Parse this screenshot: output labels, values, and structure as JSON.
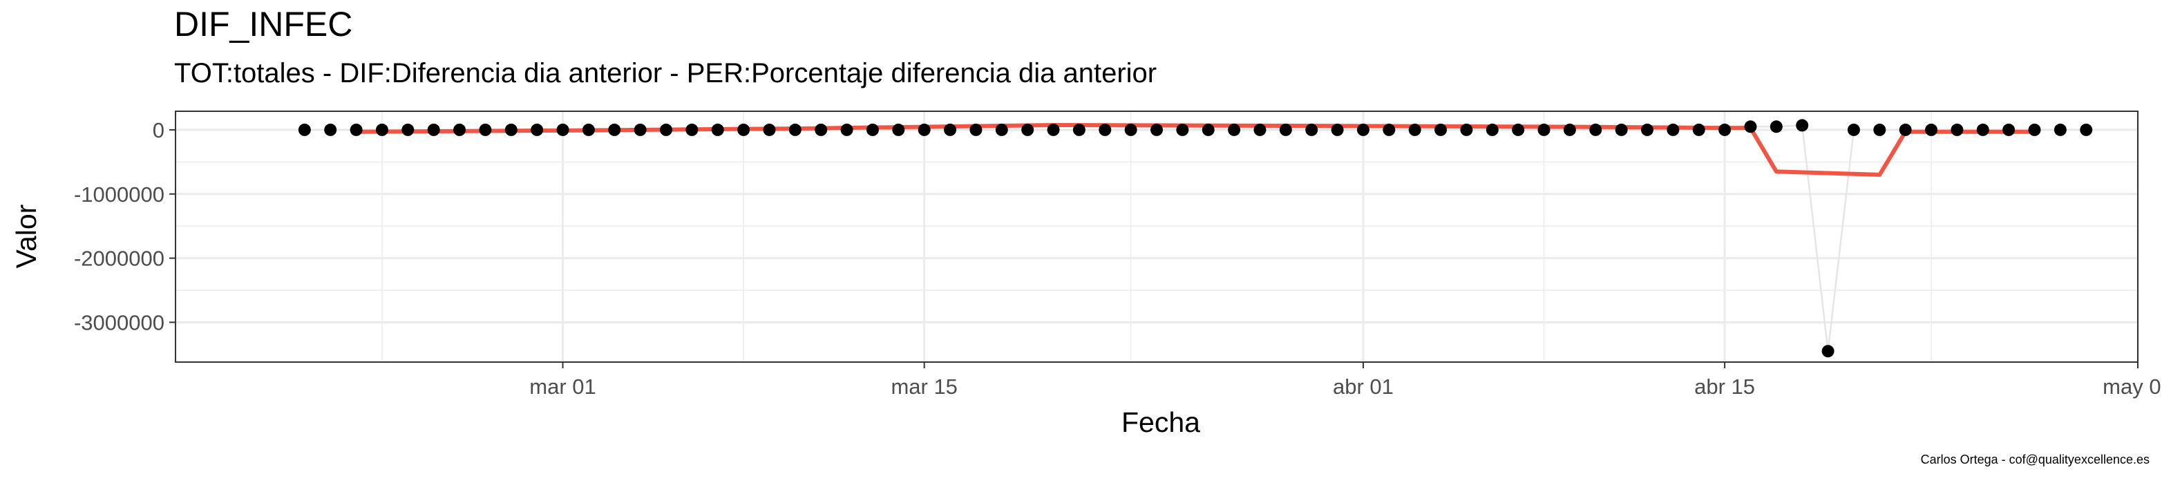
{
  "chart_data": {
    "type": "scatter",
    "title": "DIF_INFEC",
    "subtitle": "TOT:totales - DIF:Diferencia dia anterior - PER:Porcentaje diferencia dia anterior",
    "xlabel": "Fecha",
    "ylabel": "Valor",
    "caption": "Carlos Ortega - cof@qualityexcellence.es",
    "x_ticks": [
      "mar 01",
      "mar 15",
      "abr 01",
      "abr 15",
      "may 01"
    ],
    "x_tick_dates": [
      "2020-03-01",
      "2020-03-15",
      "2020-04-01",
      "2020-04-15",
      "2020-05-01"
    ],
    "y_ticks": [
      0,
      -1000000,
      -2000000,
      -3000000
    ],
    "y_tick_labels": [
      "0",
      "-1000000",
      "-2000000",
      "-3000000"
    ],
    "xlim": [
      "2020-02-15",
      "2020-05-01"
    ],
    "ylim": [
      -3620000,
      290000
    ],
    "grid": true,
    "colors": {
      "points": "#000000",
      "smooth": "#f25544",
      "thin_line": "#e6e6e6",
      "grid": "#ebebeb",
      "panel_border": "#333333"
    },
    "series": [
      {
        "style": "points",
        "x": [
          "2020-02-20",
          "2020-02-21",
          "2020-02-22",
          "2020-02-23",
          "2020-02-24",
          "2020-02-25",
          "2020-02-26",
          "2020-02-27",
          "2020-02-28",
          "2020-02-29",
          "2020-03-01",
          "2020-03-02",
          "2020-03-03",
          "2020-03-04",
          "2020-03-05",
          "2020-03-06",
          "2020-03-07",
          "2020-03-08",
          "2020-03-09",
          "2020-03-10",
          "2020-03-11",
          "2020-03-12",
          "2020-03-13",
          "2020-03-14",
          "2020-03-15",
          "2020-03-16",
          "2020-03-17",
          "2020-03-18",
          "2020-03-19",
          "2020-03-20",
          "2020-03-21",
          "2020-03-22",
          "2020-03-23",
          "2020-03-24",
          "2020-03-25",
          "2020-03-26",
          "2020-03-27",
          "2020-03-28",
          "2020-03-29",
          "2020-03-30",
          "2020-03-31",
          "2020-04-01",
          "2020-04-02",
          "2020-04-03",
          "2020-04-04",
          "2020-04-05",
          "2020-04-06",
          "2020-04-07",
          "2020-04-08",
          "2020-04-09",
          "2020-04-10",
          "2020-04-11",
          "2020-04-12",
          "2020-04-13",
          "2020-04-14",
          "2020-04-15",
          "2020-04-16",
          "2020-04-17",
          "2020-04-18",
          "2020-04-19",
          "2020-04-20",
          "2020-04-21",
          "2020-04-22",
          "2020-04-23",
          "2020-04-24",
          "2020-04-25",
          "2020-04-26",
          "2020-04-27",
          "2020-04-28",
          "2020-04-29"
        ],
        "y": [
          0,
          0,
          0,
          0,
          0,
          0,
          0,
          0,
          0,
          0,
          0,
          0,
          0,
          0,
          0,
          0,
          0,
          0,
          0,
          0,
          0,
          0,
          0,
          0,
          0,
          0,
          0,
          0,
          0,
          0,
          0,
          0,
          0,
          0,
          0,
          0,
          0,
          0,
          0,
          0,
          0,
          0,
          0,
          0,
          0,
          0,
          0,
          0,
          0,
          0,
          0,
          0,
          0,
          0,
          0,
          0,
          50000,
          50000,
          70000,
          -3450000,
          0,
          0,
          0,
          0,
          0,
          0,
          0,
          0,
          0,
          0
        ]
      },
      {
        "style": "smooth",
        "x": [
          "2020-02-22",
          "2020-03-01",
          "2020-03-10",
          "2020-03-20",
          "2020-04-01",
          "2020-04-10",
          "2020-04-15",
          "2020-04-16",
          "2020-04-17",
          "2020-04-21",
          "2020-04-22",
          "2020-04-27"
        ],
        "y": [
          -30000,
          -10000,
          20000,
          75000,
          60000,
          45000,
          30000,
          30000,
          -650000,
          -700000,
          -30000,
          -30000
        ]
      }
    ]
  }
}
